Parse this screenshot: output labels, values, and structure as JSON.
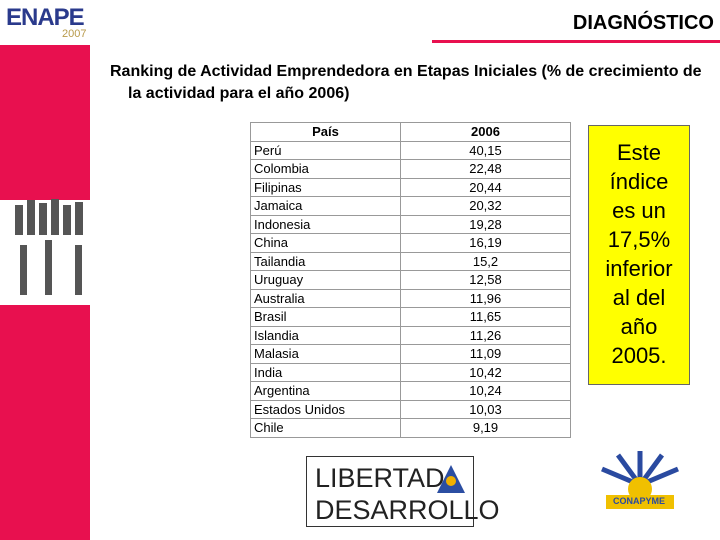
{
  "header": {
    "logo": {
      "name": "ENAPE",
      "year": "2007"
    },
    "title": "DIAGNÓSTICO"
  },
  "subtitle": "Ranking de Actividad Emprendedora en Etapas Iniciales (% de crecimiento de la actividad para el año 2006)",
  "table": {
    "columns": [
      "País",
      "2006"
    ],
    "rows": [
      [
        "Perú",
        "40,15"
      ],
      [
        "Colombia",
        "22,48"
      ],
      [
        "Filipinas",
        "20,44"
      ],
      [
        "Jamaica",
        "20,32"
      ],
      [
        "Indonesia",
        "19,28"
      ],
      [
        "China",
        "16,19"
      ],
      [
        "Tailandia",
        "15,2"
      ],
      [
        "Uruguay",
        "12,58"
      ],
      [
        "Australia",
        "11,96"
      ],
      [
        "Brasil",
        "11,65"
      ],
      [
        "Islandia",
        "11,26"
      ],
      [
        "Malasia",
        "11,09"
      ],
      [
        "India",
        "10,42"
      ],
      [
        "Argentina",
        "10,24"
      ],
      [
        "Estados Unidos",
        "10,03"
      ],
      [
        "Chile",
        "9,19"
      ]
    ]
  },
  "callout": {
    "lines": [
      "Este",
      "índice",
      "es un",
      "17,5%",
      "inferior",
      "al del",
      "año",
      "2005."
    ]
  },
  "logos": {
    "lyd": [
      "LIBERTAD",
      "DESARROLLO"
    ],
    "conapyme": "CONAPYME"
  }
}
